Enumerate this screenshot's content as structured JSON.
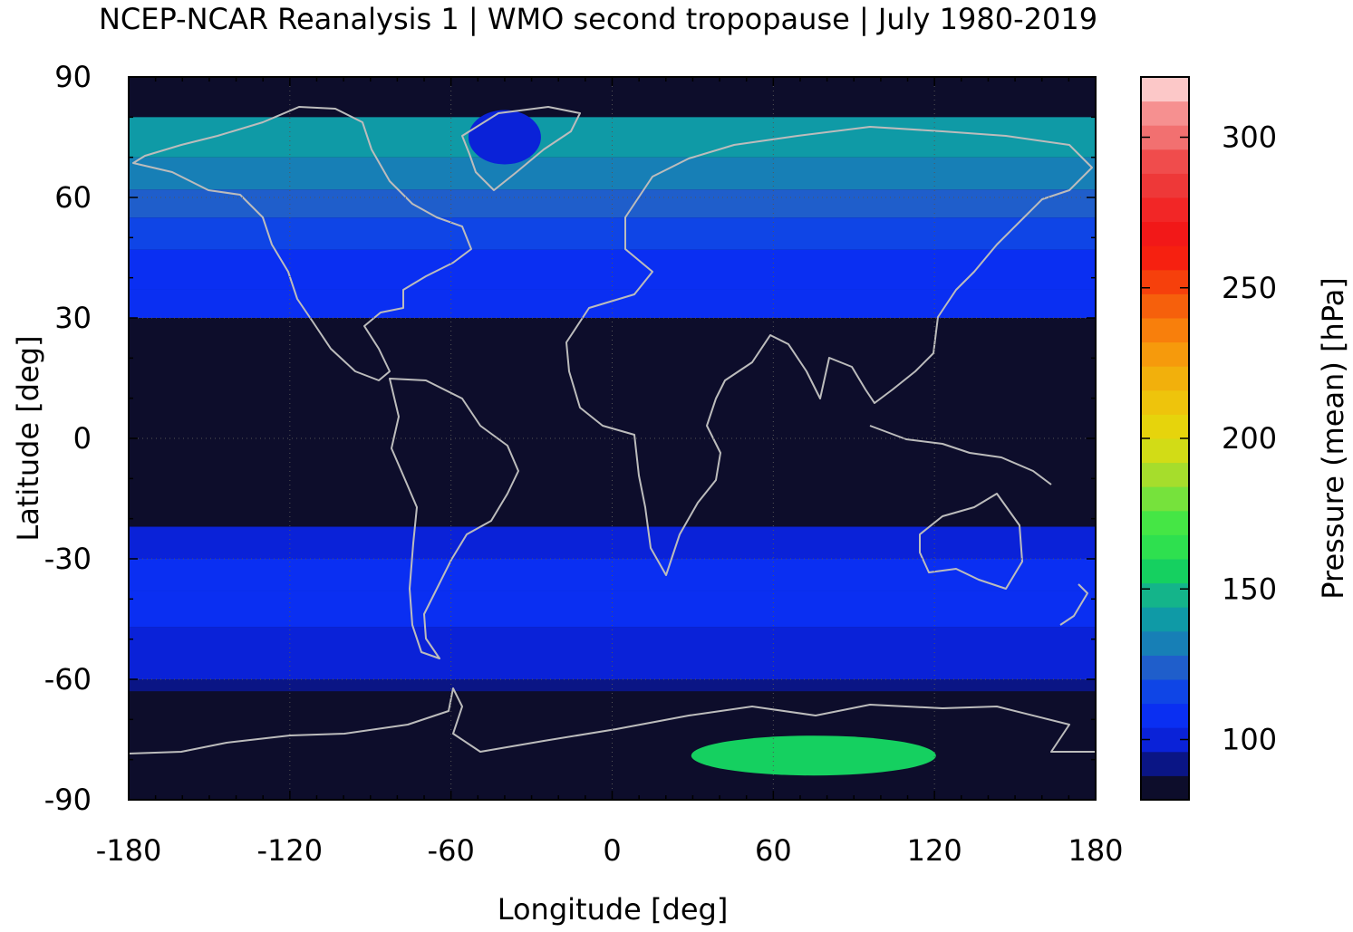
{
  "chart_data": {
    "type": "heatmap",
    "title": "NCEP-NCAR Reanalysis 1 | WMO second tropopause | July 1980-2019",
    "xlabel": "Longitude [deg]",
    "ylabel": "Latitude [deg]",
    "xlim": [
      -180,
      180
    ],
    "ylim": [
      -90,
      90
    ],
    "xticks": [
      -180,
      -120,
      -60,
      0,
      60,
      120,
      180
    ],
    "yticks": [
      90,
      60,
      30,
      0,
      -30,
      -60,
      -90
    ],
    "grid": "dotted",
    "colorbar": {
      "label": "Pressure (mean) [hPa]",
      "range": [
        80,
        320
      ],
      "ticks": [
        100,
        150,
        200,
        250,
        300
      ],
      "colors": [
        "#0d0d2b",
        "#0a1585",
        "#0a22d8",
        "#0a2ff2",
        "#0f45e6",
        "#1f5ecb",
        "#177fb6",
        "#0f9aa6",
        "#14b48a",
        "#15d060",
        "#2ee04f",
        "#45e645",
        "#76e23c",
        "#a6dd2c",
        "#d2dc16",
        "#e6d40c",
        "#eec40c",
        "#f2b00c",
        "#f69a0c",
        "#f87f0c",
        "#f6600c",
        "#f6400c",
        "#f62010",
        "#f21818",
        "#f22626",
        "#ee3838",
        "#f04c4c",
        "#f27070",
        "#f69090",
        "#fcc8c8"
      ]
    },
    "zonal_bands": [
      {
        "lat": [
          80,
          90
        ],
        "pressure": 80
      },
      {
        "lat": [
          70,
          80
        ],
        "pressure": 140
      },
      {
        "lat": [
          62,
          70
        ],
        "pressure": 135
      },
      {
        "lat": [
          55,
          62
        ],
        "pressure": 125
      },
      {
        "lat": [
          47,
          55
        ],
        "pressure": 115
      },
      {
        "lat": [
          37,
          47
        ],
        "pressure": 108
      },
      {
        "lat": [
          30,
          37
        ],
        "pressure": 104
      },
      {
        "lat": [
          -22,
          30
        ],
        "pressure": 80
      },
      {
        "lat": [
          -30,
          -22
        ],
        "pressure": 102
      },
      {
        "lat": [
          -38,
          -30
        ],
        "pressure": 106
      },
      {
        "lat": [
          -47,
          -38
        ],
        "pressure": 104
      },
      {
        "lat": [
          -60,
          -47
        ],
        "pressure": 100
      },
      {
        "lat": [
          -63,
          -60
        ],
        "pressure": 95
      },
      {
        "lat": [
          -90,
          -63
        ],
        "pressure": 80
      }
    ],
    "features": [
      {
        "name": "Greenland",
        "lon": -40,
        "lat": 75,
        "pressure": 100
      },
      {
        "name": "East Antarctica",
        "lon": 75,
        "lat": -79,
        "pressure": 155
      }
    ]
  }
}
